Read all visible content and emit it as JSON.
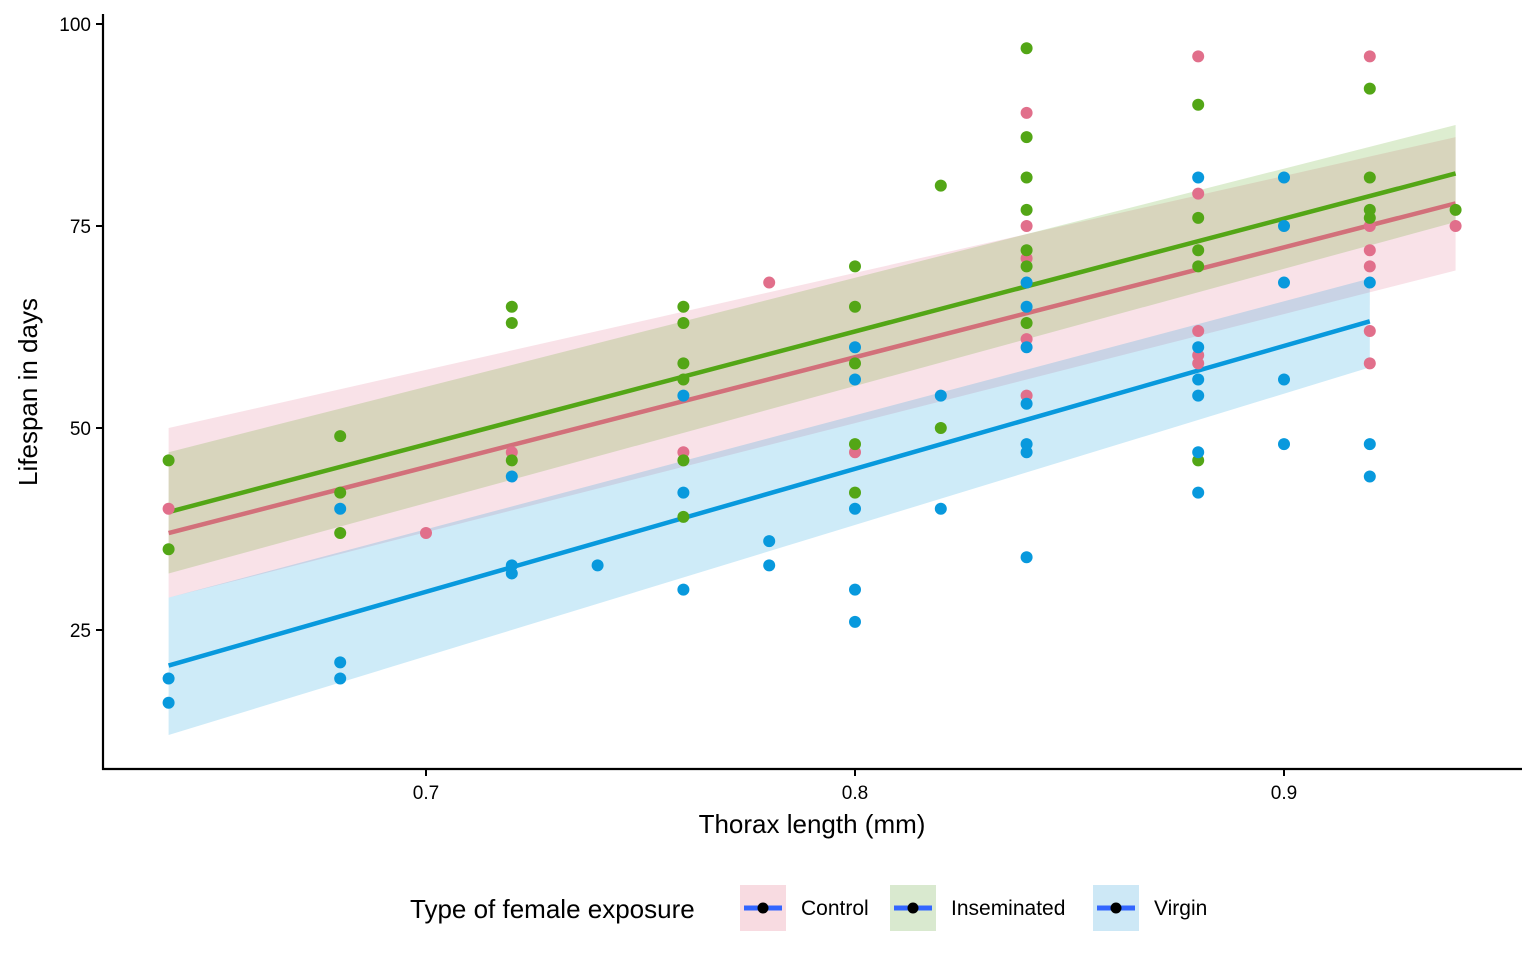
{
  "chart_data": {
    "type": "scatter",
    "title": "",
    "xlabel": "Thorax length (mm)",
    "ylabel": "Lifespan in days",
    "xlim": [
      0.625,
      0.955
    ],
    "ylim": [
      8,
      101
    ],
    "xticks": [
      0.7,
      0.8,
      0.9
    ],
    "xtick_labels": [
      "0.7",
      "0.8",
      "0.9"
    ],
    "yticks": [
      25,
      50,
      75,
      100
    ],
    "ytick_labels": [
      "25",
      "50",
      "75",
      "100"
    ],
    "grid": false,
    "legend": {
      "title": "Type of female exposure",
      "position": "bottom",
      "marker_line_color": "#3366ff"
    },
    "overlays": "linear regression fit with 95% confidence band per series",
    "series": [
      {
        "name": "Control",
        "color": "#e16f8b",
        "line_color": "#d2707a",
        "band_color": "#f8dbe1",
        "points": [
          [
            0.64,
            40
          ],
          [
            0.7,
            37
          ],
          [
            0.72,
            47
          ],
          [
            0.76,
            47
          ],
          [
            0.78,
            68
          ],
          [
            0.8,
            47
          ],
          [
            0.84,
            89
          ],
          [
            0.84,
            75
          ],
          [
            0.84,
            71
          ],
          [
            0.84,
            61
          ],
          [
            0.84,
            54
          ],
          [
            0.88,
            96
          ],
          [
            0.88,
            79
          ],
          [
            0.88,
            62
          ],
          [
            0.88,
            59
          ],
          [
            0.88,
            58
          ],
          [
            0.92,
            96
          ],
          [
            0.92,
            75
          ],
          [
            0.92,
            72
          ],
          [
            0.92,
            70
          ],
          [
            0.92,
            62
          ],
          [
            0.92,
            58
          ],
          [
            0.94,
            75
          ]
        ],
        "fit": {
          "x": [
            0.64,
            0.94
          ],
          "y": [
            37,
            77.8
          ]
        },
        "band": {
          "x": [
            0.64,
            0.94
          ],
          "lower": [
            29,
            69.5
          ],
          "upper": [
            50,
            86
          ]
        }
      },
      {
        "name": "Inseminated",
        "color": "#53a616",
        "line_color": "#53a616",
        "band_color": "#d9e9cf",
        "points": [
          [
            0.64,
            46
          ],
          [
            0.64,
            35
          ],
          [
            0.68,
            49
          ],
          [
            0.68,
            42
          ],
          [
            0.68,
            37
          ],
          [
            0.72,
            65
          ],
          [
            0.72,
            63
          ],
          [
            0.72,
            46
          ],
          [
            0.76,
            65
          ],
          [
            0.76,
            63
          ],
          [
            0.76,
            58
          ],
          [
            0.76,
            56
          ],
          [
            0.76,
            46
          ],
          [
            0.76,
            39
          ],
          [
            0.8,
            70
          ],
          [
            0.8,
            65
          ],
          [
            0.8,
            58
          ],
          [
            0.8,
            48
          ],
          [
            0.8,
            42
          ],
          [
            0.82,
            80
          ],
          [
            0.82,
            50
          ],
          [
            0.84,
            97
          ],
          [
            0.84,
            86
          ],
          [
            0.84,
            81
          ],
          [
            0.84,
            77
          ],
          [
            0.84,
            72
          ],
          [
            0.84,
            70
          ],
          [
            0.84,
            63
          ],
          [
            0.88,
            90
          ],
          [
            0.88,
            76
          ],
          [
            0.88,
            72
          ],
          [
            0.88,
            70
          ],
          [
            0.88,
            46
          ],
          [
            0.92,
            92
          ],
          [
            0.92,
            81
          ],
          [
            0.92,
            77
          ],
          [
            0.92,
            76
          ],
          [
            0.94,
            77
          ]
        ],
        "fit": {
          "x": [
            0.64,
            0.94
          ],
          "y": [
            39.6,
            81.5
          ]
        },
        "band": {
          "x": [
            0.64,
            0.94
          ],
          "lower": [
            32,
            75.5
          ],
          "upper": [
            47,
            87.5
          ]
        }
      },
      {
        "name": "Virgin",
        "color": "#0899dd",
        "line_color": "#0899dd",
        "band_color": "#cde8f6",
        "points": [
          [
            0.64,
            19
          ],
          [
            0.64,
            16
          ],
          [
            0.68,
            40
          ],
          [
            0.68,
            21
          ],
          [
            0.68,
            19
          ],
          [
            0.72,
            44
          ],
          [
            0.72,
            33
          ],
          [
            0.72,
            32
          ],
          [
            0.74,
            33
          ],
          [
            0.76,
            54
          ],
          [
            0.76,
            42
          ],
          [
            0.76,
            30
          ],
          [
            0.78,
            36
          ],
          [
            0.78,
            33
          ],
          [
            0.8,
            60
          ],
          [
            0.8,
            56
          ],
          [
            0.8,
            40
          ],
          [
            0.8,
            30
          ],
          [
            0.8,
            26
          ],
          [
            0.82,
            54
          ],
          [
            0.82,
            40
          ],
          [
            0.84,
            68
          ],
          [
            0.84,
            65
          ],
          [
            0.84,
            60
          ],
          [
            0.84,
            53
          ],
          [
            0.84,
            48
          ],
          [
            0.84,
            47
          ],
          [
            0.84,
            34
          ],
          [
            0.88,
            81
          ],
          [
            0.88,
            60
          ],
          [
            0.88,
            56
          ],
          [
            0.88,
            54
          ],
          [
            0.88,
            47
          ],
          [
            0.88,
            42
          ],
          [
            0.9,
            81
          ],
          [
            0.9,
            75
          ],
          [
            0.9,
            68
          ],
          [
            0.9,
            56
          ],
          [
            0.9,
            48
          ],
          [
            0.92,
            68
          ],
          [
            0.92,
            48
          ],
          [
            0.92,
            44
          ]
        ],
        "fit": {
          "x": [
            0.64,
            0.92
          ],
          "y": [
            20.6,
            63.2
          ]
        },
        "band": {
          "x": [
            0.64,
            0.92
          ],
          "lower": [
            12,
            57.5
          ],
          "upper": [
            29,
            68.5
          ]
        }
      }
    ]
  }
}
